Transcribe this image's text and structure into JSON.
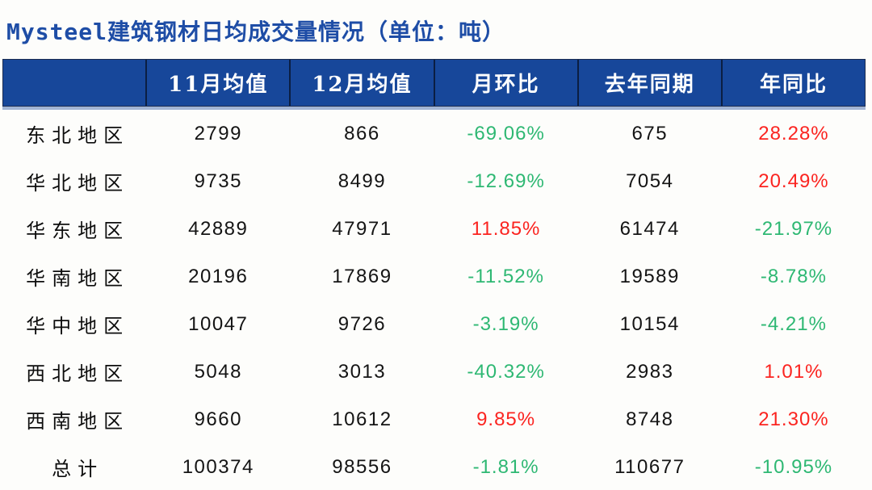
{
  "title": "Mysteel建筑钢材日均成交量情况（单位：吨）",
  "colors": {
    "title_blue": "#1e4da6",
    "header_background": "#17479a",
    "header_text": "#ffffff",
    "positive_red": "#fb2420",
    "negative_green": "#2eb873",
    "body_text": "#141414",
    "page_background": "#fdfdfb"
  },
  "chart_data": {
    "type": "table",
    "title": "Mysteel建筑钢材日均成交量情况（单位：吨）",
    "unit": "吨",
    "columns": [
      "",
      "11月均值",
      "12月均值",
      "月环比",
      "去年同期",
      "年同比"
    ],
    "percent_columns": [
      3,
      5
    ],
    "color_convention": {
      "positive": "#fb2420",
      "negative": "#2eb873"
    },
    "rows": [
      [
        "东北地区",
        "2799",
        "866",
        "-69.06%",
        "675",
        "28.28%"
      ],
      [
        "华北地区",
        "9735",
        "8499",
        "-12.69%",
        "7054",
        "20.49%"
      ],
      [
        "华东地区",
        "42889",
        "47971",
        "11.85%",
        "61474",
        "-21.97%"
      ],
      [
        "华南地区",
        "20196",
        "17869",
        "-11.52%",
        "19589",
        "-8.78%"
      ],
      [
        "华中地区",
        "10047",
        "9726",
        "-3.19%",
        "10154",
        "-4.21%"
      ],
      [
        "西北地区",
        "5048",
        "3013",
        "-40.32%",
        "2983",
        "1.01%"
      ],
      [
        "西南地区",
        "9660",
        "10612",
        "9.85%",
        "8748",
        "21.30%"
      ],
      [
        "总计",
        "100374",
        "98556",
        "-1.81%",
        "110677",
        "-10.95%"
      ]
    ]
  }
}
